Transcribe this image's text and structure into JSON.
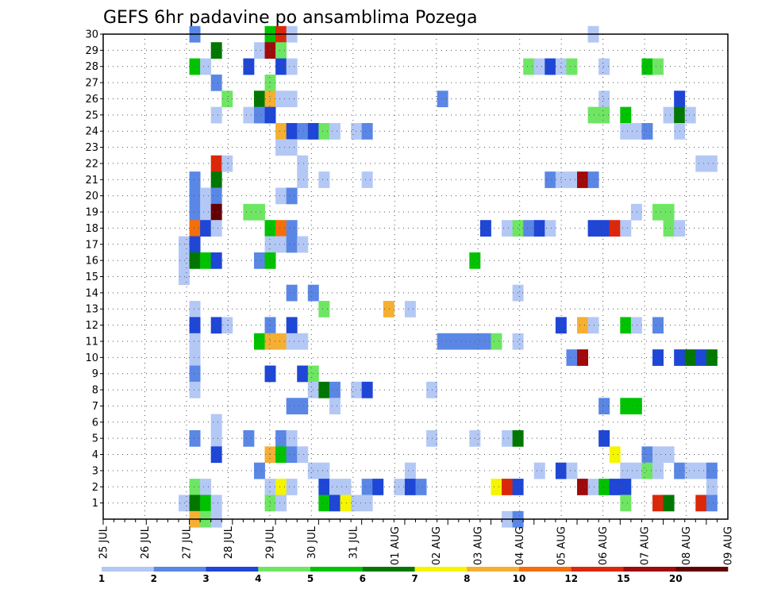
{
  "chart_data": {
    "type": "heatmap",
    "title": "GEFS 6hr padavine po ansamblima Pozega",
    "y_ticks": [
      "1",
      "2",
      "3",
      "4",
      "5",
      "6",
      "7",
      "8",
      "9",
      "10",
      "11",
      "12",
      "13",
      "14",
      "15",
      "16",
      "17",
      "18",
      "19",
      "20",
      "21",
      "22",
      "23",
      "24",
      "25",
      "26",
      "27",
      "28",
      "29",
      "30"
    ],
    "x_ticks": [
      "25 JUL",
      "26 JUL",
      "27 JUL",
      "28 JUL",
      "29 JUL",
      "30 JUL",
      "31 JUL",
      "01 AUG",
      "02 AUG",
      "03 AUG",
      "04 AUG",
      "05 AUG",
      "06 AUG",
      "07 AUG",
      "08 AUG",
      "09 AUG"
    ],
    "grid": true,
    "colorbar": {
      "labels": [
        "1",
        "2",
        "3",
        "4",
        "5",
        "6",
        "7",
        "8",
        "10",
        "12",
        "15",
        "20"
      ],
      "colors": [
        "#b4c8f5",
        "#5a87e6",
        "#1e46d7",
        "#6ee664",
        "#00c300",
        "#007800",
        "#f5f500",
        "#f5af32",
        "#f56e0a",
        "#dc280a",
        "#a00a0a",
        "#640000"
      ]
    },
    "cells": [
      {
        "x": 8,
        "y": 30,
        "c": 2
      },
      {
        "x": 15,
        "y": 30,
        "c": 5
      },
      {
        "x": 16,
        "y": 30,
        "c": 10
      },
      {
        "x": 17,
        "y": 30,
        "c": 1
      },
      {
        "x": 45,
        "y": 30,
        "c": 1
      },
      {
        "x": 10,
        "y": 29,
        "c": 6
      },
      {
        "x": 14,
        "y": 29,
        "c": 1
      },
      {
        "x": 15,
        "y": 29,
        "c": 11
      },
      {
        "x": 16,
        "y": 29,
        "c": 4
      },
      {
        "x": 8,
        "y": 28,
        "c": 5
      },
      {
        "x": 9,
        "y": 28,
        "c": 1
      },
      {
        "x": 13,
        "y": 28,
        "c": 3
      },
      {
        "x": 16,
        "y": 28,
        "c": 3
      },
      {
        "x": 17,
        "y": 28,
        "c": 1
      },
      {
        "x": 39,
        "y": 28,
        "c": 4
      },
      {
        "x": 40,
        "y": 28,
        "c": 1
      },
      {
        "x": 41,
        "y": 28,
        "c": 3
      },
      {
        "x": 42,
        "y": 28,
        "c": 1
      },
      {
        "x": 43,
        "y": 28,
        "c": 4
      },
      {
        "x": 46,
        "y": 28,
        "c": 1
      },
      {
        "x": 50,
        "y": 28,
        "c": 5
      },
      {
        "x": 51,
        "y": 28,
        "c": 4
      },
      {
        "x": 10,
        "y": 27,
        "c": 2
      },
      {
        "x": 15,
        "y": 27,
        "c": 4
      },
      {
        "x": 11,
        "y": 26,
        "c": 4
      },
      {
        "x": 14,
        "y": 26,
        "c": 6
      },
      {
        "x": 15,
        "y": 26,
        "c": 8
      },
      {
        "x": 16,
        "y": 26,
        "c": 1
      },
      {
        "x": 17,
        "y": 26,
        "c": 1
      },
      {
        "x": 31,
        "y": 26,
        "c": 2
      },
      {
        "x": 46,
        "y": 26,
        "c": 1
      },
      {
        "x": 53,
        "y": 26,
        "c": 3
      },
      {
        "x": 10,
        "y": 25,
        "c": 1
      },
      {
        "x": 13,
        "y": 25,
        "c": 1
      },
      {
        "x": 14,
        "y": 25,
        "c": 2
      },
      {
        "x": 15,
        "y": 25,
        "c": 3
      },
      {
        "x": 45,
        "y": 25,
        "c": 4
      },
      {
        "x": 46,
        "y": 25,
        "c": 4
      },
      {
        "x": 48,
        "y": 25,
        "c": 5
      },
      {
        "x": 52,
        "y": 25,
        "c": 1
      },
      {
        "x": 53,
        "y": 25,
        "c": 6
      },
      {
        "x": 54,
        "y": 25,
        "c": 1
      },
      {
        "x": 16,
        "y": 24,
        "c": 8
      },
      {
        "x": 17,
        "y": 24,
        "c": 3
      },
      {
        "x": 18,
        "y": 24,
        "c": 2
      },
      {
        "x": 19,
        "y": 24,
        "c": 3
      },
      {
        "x": 20,
        "y": 24,
        "c": 4
      },
      {
        "x": 21,
        "y": 24,
        "c": 1
      },
      {
        "x": 23,
        "y": 24,
        "c": 1
      },
      {
        "x": 24,
        "y": 24,
        "c": 2
      },
      {
        "x": 48,
        "y": 24,
        "c": 1
      },
      {
        "x": 49,
        "y": 24,
        "c": 1
      },
      {
        "x": 50,
        "y": 24,
        "c": 2
      },
      {
        "x": 53,
        "y": 24,
        "c": 1
      },
      {
        "x": 16,
        "y": 23,
        "c": 1
      },
      {
        "x": 17,
        "y": 23,
        "c": 1
      },
      {
        "x": 10,
        "y": 22,
        "c": 10
      },
      {
        "x": 11,
        "y": 22,
        "c": 1
      },
      {
        "x": 18,
        "y": 22,
        "c": 1
      },
      {
        "x": 55,
        "y": 22,
        "c": 1
      },
      {
        "x": 56,
        "y": 22,
        "c": 1
      },
      {
        "x": 8,
        "y": 21,
        "c": 2
      },
      {
        "x": 10,
        "y": 21,
        "c": 6
      },
      {
        "x": 18,
        "y": 21,
        "c": 1
      },
      {
        "x": 20,
        "y": 21,
        "c": 1
      },
      {
        "x": 24,
        "y": 21,
        "c": 1
      },
      {
        "x": 41,
        "y": 21,
        "c": 2
      },
      {
        "x": 42,
        "y": 21,
        "c": 1
      },
      {
        "x": 43,
        "y": 21,
        "c": 1
      },
      {
        "x": 44,
        "y": 21,
        "c": 11
      },
      {
        "x": 45,
        "y": 21,
        "c": 2
      },
      {
        "x": 8,
        "y": 20,
        "c": 2
      },
      {
        "x": 9,
        "y": 20,
        "c": 1
      },
      {
        "x": 10,
        "y": 20,
        "c": 2
      },
      {
        "x": 16,
        "y": 20,
        "c": 1
      },
      {
        "x": 17,
        "y": 20,
        "c": 2
      },
      {
        "x": 8,
        "y": 19,
        "c": 2
      },
      {
        "x": 9,
        "y": 19,
        "c": 1
      },
      {
        "x": 10,
        "y": 19,
        "c": 12
      },
      {
        "x": 13,
        "y": 19,
        "c": 4
      },
      {
        "x": 14,
        "y": 19,
        "c": 4
      },
      {
        "x": 49,
        "y": 19,
        "c": 1
      },
      {
        "x": 51,
        "y": 19,
        "c": 4
      },
      {
        "x": 52,
        "y": 19,
        "c": 4
      },
      {
        "x": 8,
        "y": 18,
        "c": 9
      },
      {
        "x": 9,
        "y": 18,
        "c": 3
      },
      {
        "x": 10,
        "y": 18,
        "c": 1
      },
      {
        "x": 15,
        "y": 18,
        "c": 5
      },
      {
        "x": 16,
        "y": 18,
        "c": 9
      },
      {
        "x": 17,
        "y": 18,
        "c": 2
      },
      {
        "x": 35,
        "y": 18,
        "c": 3
      },
      {
        "x": 37,
        "y": 18,
        "c": 1
      },
      {
        "x": 38,
        "y": 18,
        "c": 4
      },
      {
        "x": 39,
        "y": 18,
        "c": 2
      },
      {
        "x": 40,
        "y": 18,
        "c": 3
      },
      {
        "x": 41,
        "y": 18,
        "c": 1
      },
      {
        "x": 45,
        "y": 18,
        "c": 3
      },
      {
        "x": 46,
        "y": 18,
        "c": 3
      },
      {
        "x": 47,
        "y": 18,
        "c": 10
      },
      {
        "x": 48,
        "y": 18,
        "c": 1
      },
      {
        "x": 52,
        "y": 18,
        "c": 4
      },
      {
        "x": 53,
        "y": 18,
        "c": 1
      },
      {
        "x": 7,
        "y": 17,
        "c": 1
      },
      {
        "x": 8,
        "y": 17,
        "c": 3
      },
      {
        "x": 15,
        "y": 17,
        "c": 1
      },
      {
        "x": 16,
        "y": 17,
        "c": 1
      },
      {
        "x": 17,
        "y": 17,
        "c": 2
      },
      {
        "x": 18,
        "y": 17,
        "c": 1
      },
      {
        "x": 7,
        "y": 16,
        "c": 1
      },
      {
        "x": 8,
        "y": 16,
        "c": 6
      },
      {
        "x": 9,
        "y": 16,
        "c": 5
      },
      {
        "x": 10,
        "y": 16,
        "c": 3
      },
      {
        "x": 14,
        "y": 16,
        "c": 2
      },
      {
        "x": 15,
        "y": 16,
        "c": 5
      },
      {
        "x": 34,
        "y": 16,
        "c": 5
      },
      {
        "x": 7,
        "y": 15,
        "c": 1
      },
      {
        "x": 17,
        "y": 14,
        "c": 2
      },
      {
        "x": 19,
        "y": 14,
        "c": 2
      },
      {
        "x": 38,
        "y": 14,
        "c": 1
      },
      {
        "x": 8,
        "y": 13,
        "c": 1
      },
      {
        "x": 20,
        "y": 13,
        "c": 4
      },
      {
        "x": 26,
        "y": 13,
        "c": 8
      },
      {
        "x": 28,
        "y": 13,
        "c": 1
      },
      {
        "x": 8,
        "y": 12,
        "c": 3
      },
      {
        "x": 10,
        "y": 12,
        "c": 3
      },
      {
        "x": 11,
        "y": 12,
        "c": 1
      },
      {
        "x": 15,
        "y": 12,
        "c": 2
      },
      {
        "x": 17,
        "y": 12,
        "c": 3
      },
      {
        "x": 42,
        "y": 12,
        "c": 3
      },
      {
        "x": 44,
        "y": 12,
        "c": 8
      },
      {
        "x": 45,
        "y": 12,
        "c": 1
      },
      {
        "x": 48,
        "y": 12,
        "c": 5
      },
      {
        "x": 49,
        "y": 12,
        "c": 1
      },
      {
        "x": 51,
        "y": 12,
        "c": 2
      },
      {
        "x": 8,
        "y": 11,
        "c": 1
      },
      {
        "x": 14,
        "y": 11,
        "c": 5
      },
      {
        "x": 15,
        "y": 11,
        "c": 8
      },
      {
        "x": 16,
        "y": 11,
        "c": 8
      },
      {
        "x": 17,
        "y": 11,
        "c": 1
      },
      {
        "x": 18,
        "y": 11,
        "c": 1
      },
      {
        "x": 31,
        "y": 11,
        "c": 2
      },
      {
        "x": 32,
        "y": 11,
        "c": 2
      },
      {
        "x": 33,
        "y": 11,
        "c": 2
      },
      {
        "x": 34,
        "y": 11,
        "c": 2
      },
      {
        "x": 35,
        "y": 11,
        "c": 2
      },
      {
        "x": 36,
        "y": 11,
        "c": 4
      },
      {
        "x": 38,
        "y": 11,
        "c": 1
      },
      {
        "x": 8,
        "y": 10,
        "c": 1
      },
      {
        "x": 43,
        "y": 10,
        "c": 2
      },
      {
        "x": 44,
        "y": 10,
        "c": 11
      },
      {
        "x": 51,
        "y": 10,
        "c": 3
      },
      {
        "x": 53,
        "y": 10,
        "c": 3
      },
      {
        "x": 54,
        "y": 10,
        "c": 6
      },
      {
        "x": 55,
        "y": 10,
        "c": 3
      },
      {
        "x": 56,
        "y": 10,
        "c": 6
      },
      {
        "x": 8,
        "y": 9,
        "c": 2
      },
      {
        "x": 15,
        "y": 9,
        "c": 3
      },
      {
        "x": 18,
        "y": 9,
        "c": 3
      },
      {
        "x": 19,
        "y": 9,
        "c": 4
      },
      {
        "x": 8,
        "y": 8,
        "c": 1
      },
      {
        "x": 19,
        "y": 8,
        "c": 1
      },
      {
        "x": 20,
        "y": 8,
        "c": 6
      },
      {
        "x": 21,
        "y": 8,
        "c": 2
      },
      {
        "x": 23,
        "y": 8,
        "c": 1
      },
      {
        "x": 24,
        "y": 8,
        "c": 3
      },
      {
        "x": 30,
        "y": 8,
        "c": 1
      },
      {
        "x": 17,
        "y": 7,
        "c": 2
      },
      {
        "x": 18,
        "y": 7,
        "c": 2
      },
      {
        "x": 21,
        "y": 7,
        "c": 1
      },
      {
        "x": 46,
        "y": 7,
        "c": 2
      },
      {
        "x": 48,
        "y": 7,
        "c": 5
      },
      {
        "x": 49,
        "y": 7,
        "c": 5
      },
      {
        "x": 10,
        "y": 6,
        "c": 1
      },
      {
        "x": 8,
        "y": 5,
        "c": 2
      },
      {
        "x": 10,
        "y": 5,
        "c": 1
      },
      {
        "x": 13,
        "y": 5,
        "c": 2
      },
      {
        "x": 16,
        "y": 5,
        "c": 2
      },
      {
        "x": 17,
        "y": 5,
        "c": 1
      },
      {
        "x": 30,
        "y": 5,
        "c": 1
      },
      {
        "x": 34,
        "y": 5,
        "c": 1
      },
      {
        "x": 37,
        "y": 5,
        "c": 1
      },
      {
        "x": 38,
        "y": 5,
        "c": 6
      },
      {
        "x": 46,
        "y": 5,
        "c": 3
      },
      {
        "x": 10,
        "y": 4,
        "c": 3
      },
      {
        "x": 15,
        "y": 4,
        "c": 8
      },
      {
        "x": 16,
        "y": 4,
        "c": 5
      },
      {
        "x": 17,
        "y": 4,
        "c": 2
      },
      {
        "x": 18,
        "y": 4,
        "c": 1
      },
      {
        "x": 47,
        "y": 4,
        "c": 7
      },
      {
        "x": 50,
        "y": 4,
        "c": 2
      },
      {
        "x": 51,
        "y": 4,
        "c": 1
      },
      {
        "x": 52,
        "y": 4,
        "c": 1
      },
      {
        "x": 14,
        "y": 3,
        "c": 2
      },
      {
        "x": 19,
        "y": 3,
        "c": 1
      },
      {
        "x": 20,
        "y": 3,
        "c": 1
      },
      {
        "x": 28,
        "y": 3,
        "c": 1
      },
      {
        "x": 40,
        "y": 3,
        "c": 1
      },
      {
        "x": 42,
        "y": 3,
        "c": 3
      },
      {
        "x": 43,
        "y": 3,
        "c": 1
      },
      {
        "x": 48,
        "y": 3,
        "c": 1
      },
      {
        "x": 49,
        "y": 3,
        "c": 1
      },
      {
        "x": 50,
        "y": 3,
        "c": 4
      },
      {
        "x": 51,
        "y": 3,
        "c": 1
      },
      {
        "x": 53,
        "y": 3,
        "c": 2
      },
      {
        "x": 54,
        "y": 3,
        "c": 1
      },
      {
        "x": 55,
        "y": 3,
        "c": 1
      },
      {
        "x": 56,
        "y": 3,
        "c": 2
      },
      {
        "x": 8,
        "y": 2,
        "c": 4
      },
      {
        "x": 9,
        "y": 2,
        "c": 1
      },
      {
        "x": 15,
        "y": 2,
        "c": 1
      },
      {
        "x": 16,
        "y": 2,
        "c": 7
      },
      {
        "x": 17,
        "y": 2,
        "c": 1
      },
      {
        "x": 20,
        "y": 2,
        "c": 3
      },
      {
        "x": 21,
        "y": 2,
        "c": 1
      },
      {
        "x": 22,
        "y": 2,
        "c": 1
      },
      {
        "x": 24,
        "y": 2,
        "c": 2
      },
      {
        "x": 25,
        "y": 2,
        "c": 3
      },
      {
        "x": 27,
        "y": 2,
        "c": 1
      },
      {
        "x": 28,
        "y": 2,
        "c": 3
      },
      {
        "x": 29,
        "y": 2,
        "c": 2
      },
      {
        "x": 36,
        "y": 2,
        "c": 7
      },
      {
        "x": 37,
        "y": 2,
        "c": 10
      },
      {
        "x": 38,
        "y": 2,
        "c": 3
      },
      {
        "x": 44,
        "y": 2,
        "c": 11
      },
      {
        "x": 45,
        "y": 2,
        "c": 1
      },
      {
        "x": 46,
        "y": 2,
        "c": 5
      },
      {
        "x": 47,
        "y": 2,
        "c": 3
      },
      {
        "x": 48,
        "y": 2,
        "c": 3
      },
      {
        "x": 56,
        "y": 2,
        "c": 1
      },
      {
        "x": 7,
        "y": 1,
        "c": 1
      },
      {
        "x": 8,
        "y": 1,
        "c": 6
      },
      {
        "x": 9,
        "y": 1,
        "c": 5
      },
      {
        "x": 10,
        "y": 1,
        "c": 1
      },
      {
        "x": 15,
        "y": 1,
        "c": 4
      },
      {
        "x": 16,
        "y": 1,
        "c": 1
      },
      {
        "x": 20,
        "y": 1,
        "c": 5
      },
      {
        "x": 21,
        "y": 1,
        "c": 3
      },
      {
        "x": 22,
        "y": 1,
        "c": 7
      },
      {
        "x": 23,
        "y": 1,
        "c": 1
      },
      {
        "x": 24,
        "y": 1,
        "c": 1
      },
      {
        "x": 48,
        "y": 1,
        "c": 4
      },
      {
        "x": 51,
        "y": 1,
        "c": 10
      },
      {
        "x": 52,
        "y": 1,
        "c": 6
      },
      {
        "x": 55,
        "y": 1,
        "c": 10
      },
      {
        "x": 56,
        "y": 1,
        "c": 2
      },
      {
        "x": 8,
        "y": 0,
        "c": 8
      },
      {
        "x": 9,
        "y": 0,
        "c": 4
      },
      {
        "x": 10,
        "y": 0,
        "c": 1
      },
      {
        "x": 37,
        "y": 0,
        "c": 1
      },
      {
        "x": 38,
        "y": 0,
        "c": 2
      }
    ]
  }
}
